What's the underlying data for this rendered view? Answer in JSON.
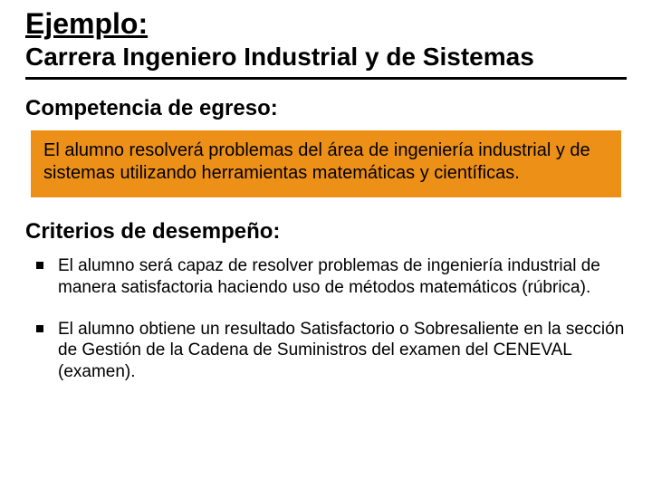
{
  "slide": {
    "title_example": "Ejemplo:",
    "title_career": "Carrera Ingeniero Industrial y de Sistemas",
    "competency_heading": "Competencia de egreso:",
    "competency_text": "El alumno resolverá problemas del área de ingeniería industrial y de sistemas utilizando herramientas matemáticas y científicas.",
    "criteria_heading": "Criterios de desempeño:",
    "criteria": [
      "El alumno será capaz de resolver problemas de ingeniería industrial de manera satisfactoria haciendo uso de métodos matemáticos (rúbrica).",
      "El alumno obtiene un resultado Satisfactorio o Sobresaliente en la sección de Gestión de la Cadena de Suministros del examen del CENEVAL (examen)."
    ]
  },
  "colors": {
    "highlight_bg": "#ed9017",
    "text": "#000000",
    "bg": "#ffffff",
    "divider": "#000000"
  },
  "typography": {
    "font_family": "Arial",
    "title_example_size": 32,
    "title_career_size": 28,
    "section_heading_size": 24,
    "body_size": 20
  }
}
